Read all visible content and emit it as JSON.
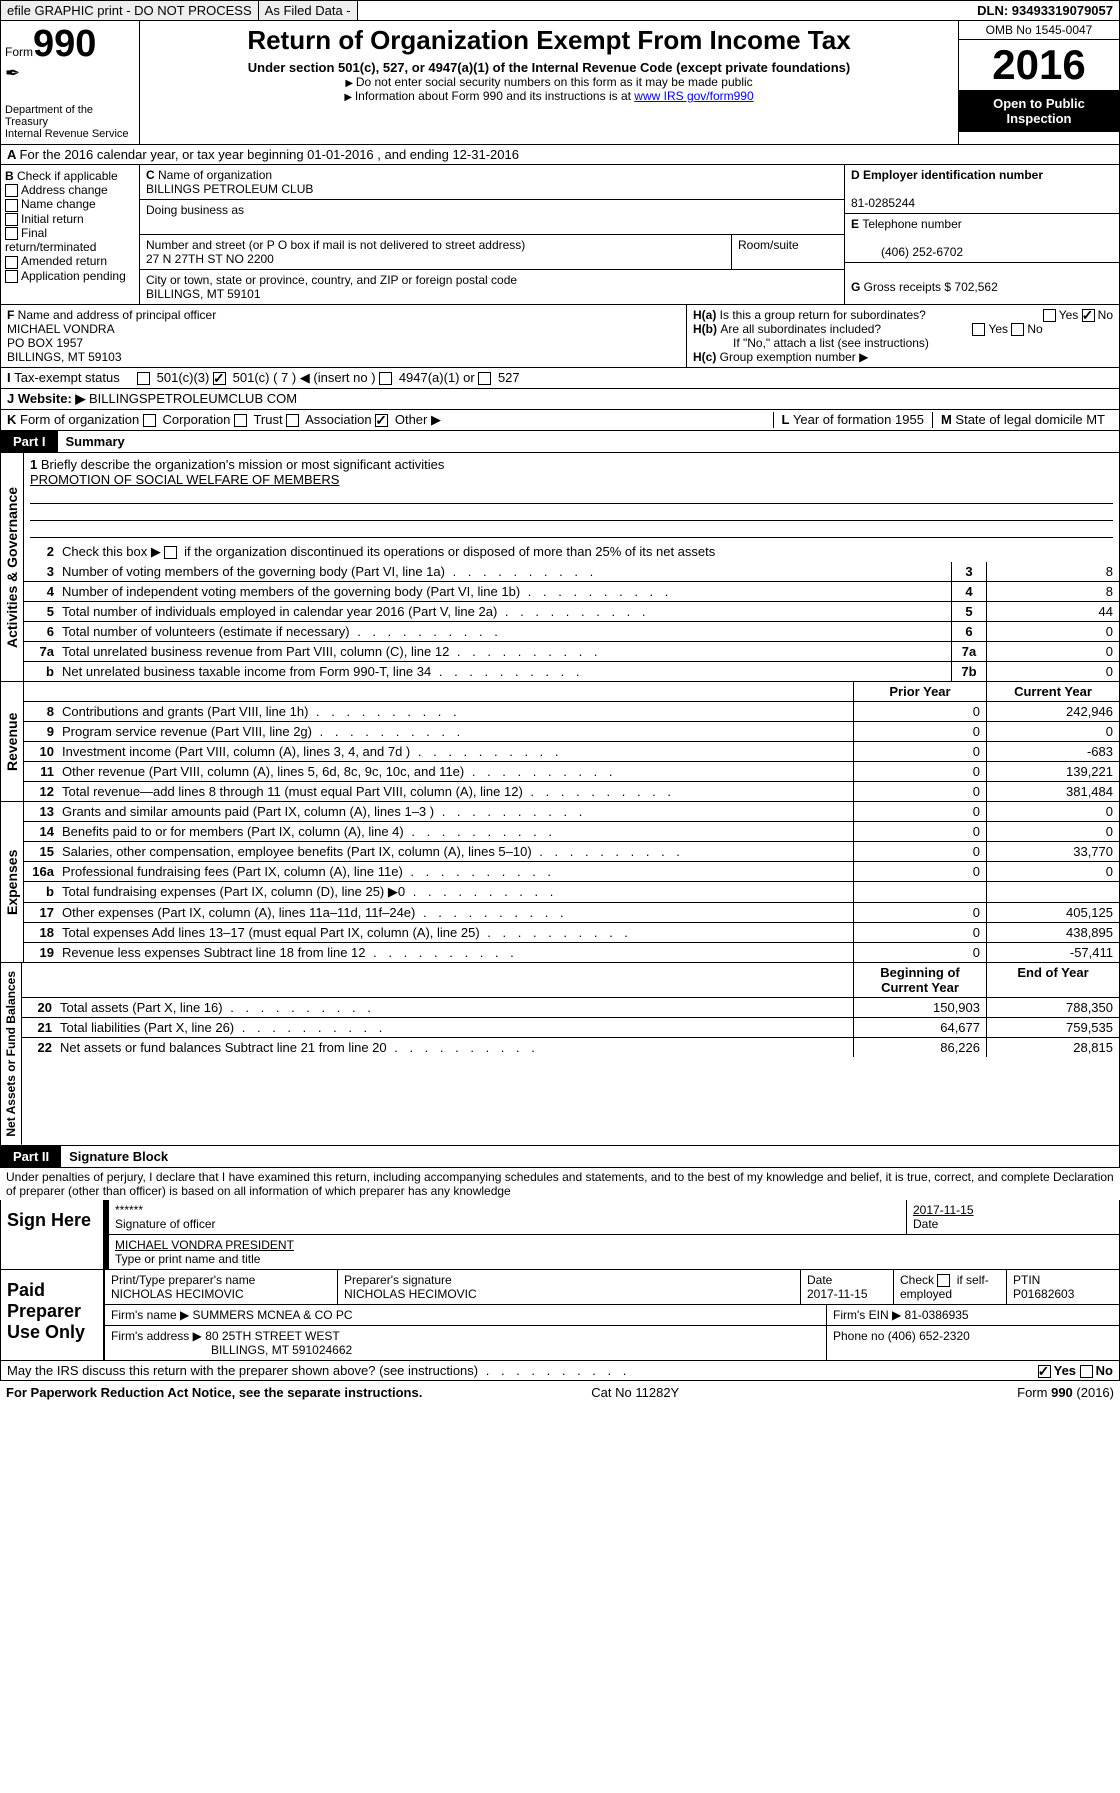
{
  "topbar": {
    "efile": "efile GRAPHIC print - DO NOT PROCESS",
    "asfiled": "As Filed Data -",
    "dln": "DLN: 93493319079057"
  },
  "hdr": {
    "formword": "Form",
    "formnum": "990",
    "dept": "Department of the Treasury",
    "irs": "Internal Revenue Service",
    "title": "Return of Organization Exempt From Income Tax",
    "sub": "Under section 501(c), 527, or 4947(a)(1) of the Internal Revenue Code (except private foundations)",
    "note1": "Do not enter social security numbers on this form as it may be made public",
    "note2": "Information about Form 990 and its instructions is at ",
    "link": "www IRS gov/form990",
    "omb": "OMB No 1545-0047",
    "year": "2016",
    "inspect1": "Open to Public",
    "inspect2": "Inspection"
  },
  "A": {
    "text": "For the 2016 calendar year, or tax year beginning 01-01-2016  , and ending 12-31-2016"
  },
  "B": {
    "hdr": "Check if applicable",
    "items": [
      "Address change",
      "Name change",
      "Initial return",
      "Final return/terminated",
      "Amended return",
      "Application pending"
    ]
  },
  "C": {
    "nameLbl": "Name of organization",
    "name": "BILLINGS PETROLEUM CLUB",
    "dbaLbl": "Doing business as",
    "addrLbl": "Number and street (or P O  box if mail is not delivered to street address)",
    "addr": "27 N 27TH ST NO 2200",
    "roomLbl": "Room/suite",
    "cityLbl": "City or town, state or province, country, and ZIP or foreign postal code",
    "city": "BILLINGS, MT  59101"
  },
  "D": {
    "lbl": "Employer identification number",
    "val": "81-0285244"
  },
  "E": {
    "lbl": "Telephone number",
    "val": "(406) 252-6702"
  },
  "G": {
    "lbl": "Gross receipts $",
    "val": "702,562"
  },
  "F": {
    "lbl": "Name and address of principal officer",
    "l1": "MICHAEL VONDRA",
    "l2": "PO BOX 1957",
    "l3": "BILLINGS, MT  59103"
  },
  "H": {
    "a": "Is this a group return for subordinates?",
    "b": "Are all subordinates included?",
    "ifno": "If \"No,\" attach a list  (see instructions)",
    "c": "Group exemption number ▶",
    "yes": "Yes",
    "no": "No"
  },
  "I": {
    "lbl": "Tax-exempt status",
    "o1": "501(c)(3)",
    "o2": "501(c) ( 7 ) ◀ (insert no )",
    "o3": "4947(a)(1) or",
    "o4": "527"
  },
  "J": {
    "lbl": "Website: ▶",
    "val": "BILLINGSPETROLEUMCLUB COM"
  },
  "K": {
    "lbl": "Form of organization",
    "o1": "Corporation",
    "o2": "Trust",
    "o3": "Association",
    "o4": "Other ▶"
  },
  "L": {
    "lbl": "Year of formation",
    "val": "1955"
  },
  "M": {
    "lbl": "State of legal domicile",
    "val": "MT"
  },
  "partI": {
    "tag": "Part I",
    "title": "Summary"
  },
  "gov": {
    "label": "Activities & Governance",
    "l1": "Briefly describe the organization's mission or most significant activities",
    "l1v": "PROMOTION OF SOCIAL WELFARE OF MEMBERS",
    "l2": "Check this box ▶     if the organization discontinued its operations or disposed of more than 25% of its net assets",
    "l3": "Number of voting members of the governing body (Part VI, line 1a)",
    "v3": "8",
    "l4": "Number of independent voting members of the governing body (Part VI, line 1b)",
    "v4": "8",
    "l5": "Total number of individuals employed in calendar year 2016 (Part V, line 2a)",
    "v5": "44",
    "l6": "Total number of volunteers (estimate if necessary)",
    "v6": "0",
    "l7a": "Total unrelated business revenue from Part VIII, column (C), line 12",
    "v7a": "0",
    "l7b": "Net unrelated business taxable income from Form 990-T, line 34",
    "v7b": "0"
  },
  "rev": {
    "label": "Revenue",
    "prior": "Prior Year",
    "curr": "Current Year",
    "r": [
      {
        "n": "8",
        "d": "Contributions and grants (Part VIII, line 1h)",
        "p": "0",
        "c": "242,946"
      },
      {
        "n": "9",
        "d": "Program service revenue (Part VIII, line 2g)",
        "p": "0",
        "c": "0"
      },
      {
        "n": "10",
        "d": "Investment income (Part VIII, column (A), lines 3, 4, and 7d )",
        "p": "0",
        "c": "-683"
      },
      {
        "n": "11",
        "d": "Other revenue (Part VIII, column (A), lines 5, 6d, 8c, 9c, 10c, and 11e)",
        "p": "0",
        "c": "139,221"
      },
      {
        "n": "12",
        "d": "Total revenue—add lines 8 through 11 (must equal Part VIII, column (A), line 12)",
        "p": "0",
        "c": "381,484"
      }
    ]
  },
  "exp": {
    "label": "Expenses",
    "r": [
      {
        "n": "13",
        "d": "Grants and similar amounts paid (Part IX, column (A), lines 1–3 )",
        "p": "0",
        "c": "0"
      },
      {
        "n": "14",
        "d": "Benefits paid to or for members (Part IX, column (A), line 4)",
        "p": "0",
        "c": "0"
      },
      {
        "n": "15",
        "d": "Salaries, other compensation, employee benefits (Part IX, column (A), lines 5–10)",
        "p": "0",
        "c": "33,770"
      },
      {
        "n": "16a",
        "d": "Professional fundraising fees (Part IX, column (A), line 11e)",
        "p": "0",
        "c": "0"
      },
      {
        "n": "b",
        "d": "Total fundraising expenses (Part IX, column (D), line 25) ▶0",
        "p": "",
        "c": ""
      },
      {
        "n": "17",
        "d": "Other expenses (Part IX, column (A), lines 11a–11d, 11f–24e)",
        "p": "0",
        "c": "405,125"
      },
      {
        "n": "18",
        "d": "Total expenses  Add lines 13–17 (must equal Part IX, column (A), line 25)",
        "p": "0",
        "c": "438,895"
      },
      {
        "n": "19",
        "d": "Revenue less expenses  Subtract line 18 from line 12",
        "p": "0",
        "c": "-57,411"
      }
    ]
  },
  "na": {
    "label": "Net Assets or Fund Balances",
    "h1": "Beginning of Current Year",
    "h2": "End of Year",
    "r": [
      {
        "n": "20",
        "d": "Total assets (Part X, line 16)",
        "p": "150,903",
        "c": "788,350"
      },
      {
        "n": "21",
        "d": "Total liabilities (Part X, line 26)",
        "p": "64,677",
        "c": "759,535"
      },
      {
        "n": "22",
        "d": "Net assets or fund balances  Subtract line 21 from line 20",
        "p": "86,226",
        "c": "28,815"
      }
    ]
  },
  "partII": {
    "tag": "Part II",
    "title": "Signature Block",
    "perjury": "Under penalties of perjury, I declare that I have examined this return, including accompanying schedules and statements, and to the best of my knowledge and belief, it is true, correct, and complete  Declaration of preparer (other than officer) is based on all information of which preparer has any knowledge"
  },
  "sign": {
    "here": "Sign Here",
    "stars": "******",
    "sigoff": "Signature of officer",
    "date": "2017-11-15",
    "dateL": "Date",
    "name": "MICHAEL VONDRA  PRESIDENT",
    "typeL": "Type or print name and title"
  },
  "paid": {
    "here": "Paid Preparer Use Only",
    "pnameL": "Print/Type preparer's name",
    "pname": "NICHOLAS HECIMOVIC",
    "psigL": "Preparer's signature",
    "psig": "NICHOLAS HECIMOVIC",
    "pdateL": "Date",
    "pdate": "2017-11-15",
    "checkL": "Check         if self-employed",
    "ptinL": "PTIN",
    "ptin": "P01682603",
    "firmL": "Firm's name   ▶",
    "firm": "SUMMERS MCNEA & CO PC",
    "feinL": "Firm's EIN ▶",
    "fein": "81-0386935",
    "faddrL": "Firm's address ▶",
    "faddr": "80 25TH STREET WEST",
    "fcity": "BILLINGS, MT  591024662",
    "phoneL": "Phone no",
    "phone": "(406) 652-2320"
  },
  "discuss": {
    "q": "May the IRS discuss this return with the preparer shown above? (see instructions)",
    "yes": "Yes",
    "no": "No"
  },
  "footer": {
    "l": "For Paperwork Reduction Act Notice, see the separate instructions.",
    "m": "Cat  No  11282Y",
    "r": "Form 990 (2016)"
  }
}
